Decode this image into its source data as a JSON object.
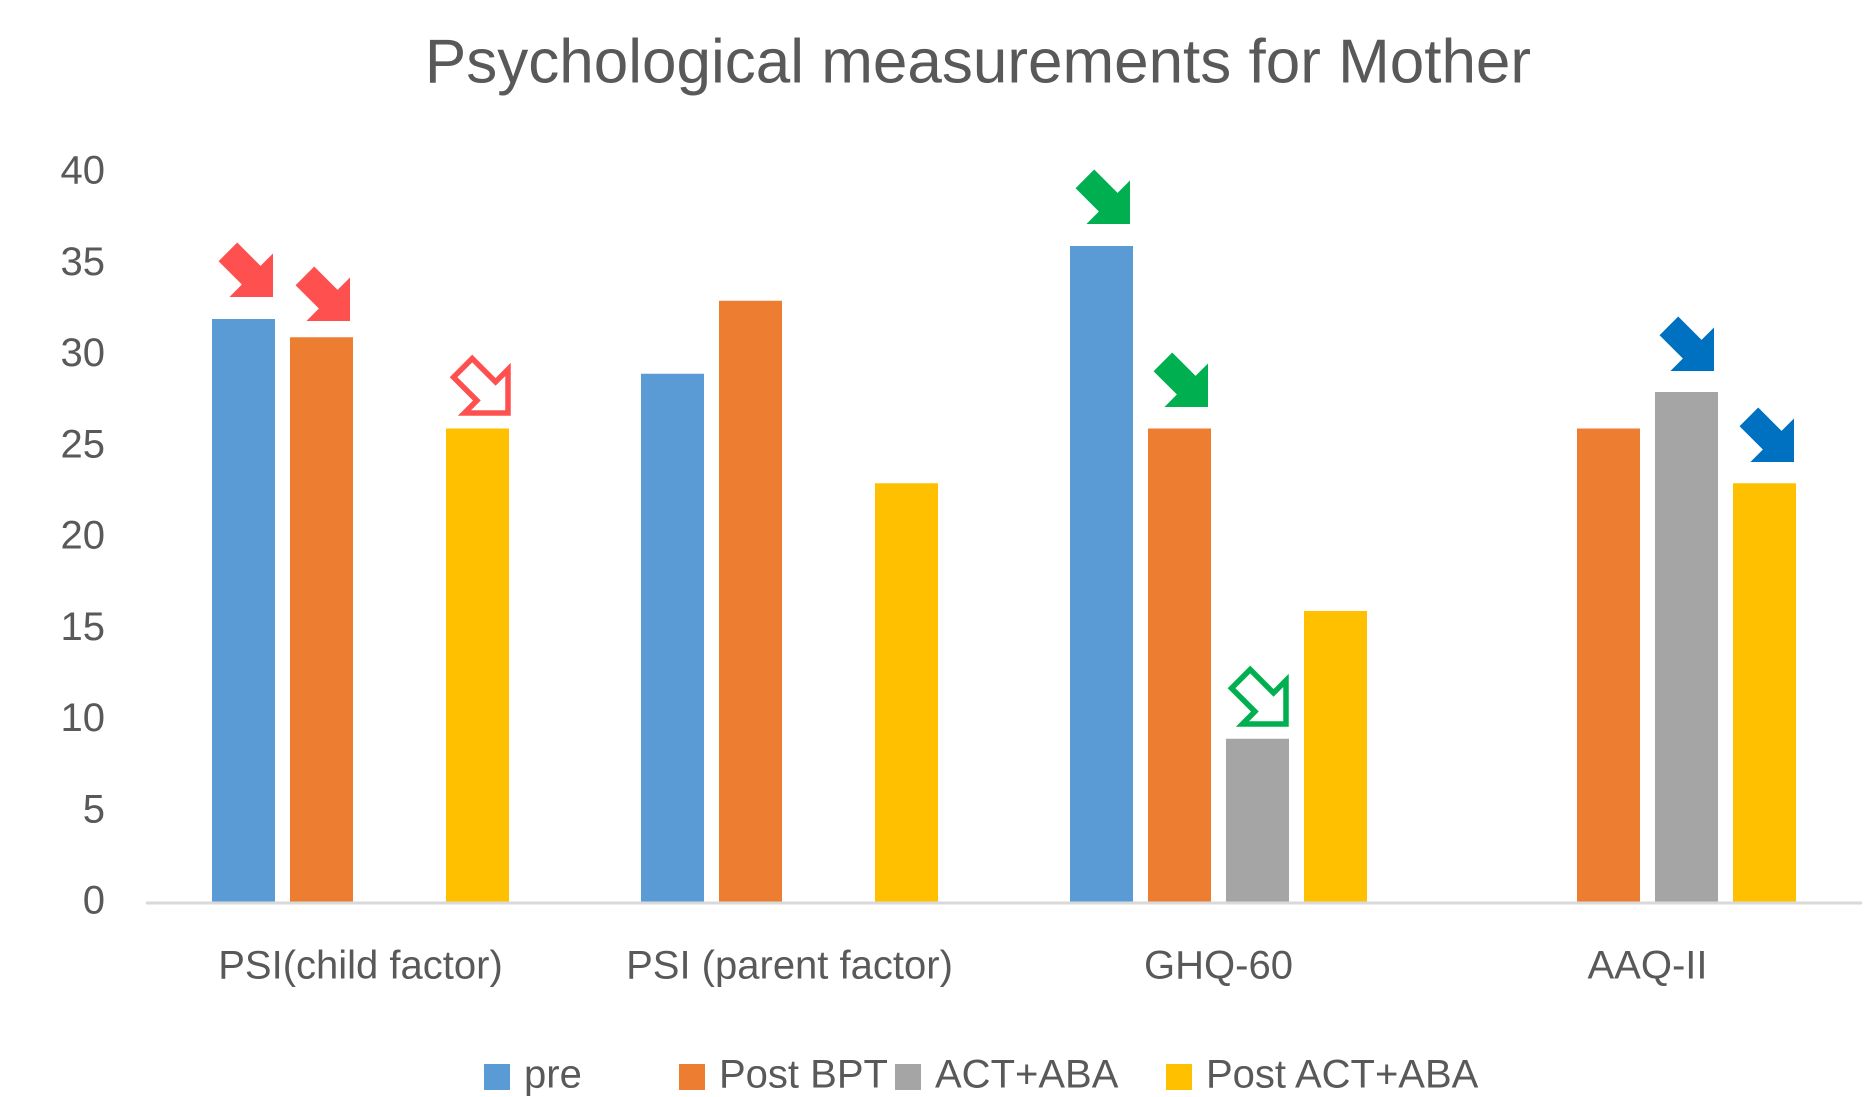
{
  "chart_data": {
    "type": "bar",
    "title": "Psychological measurements for Mother",
    "categories": [
      "PSI(child factor)",
      "PSI (parent factor)",
      "GHQ-60",
      "AAQ-II"
    ],
    "series": [
      {
        "name": "pre",
        "color": "#5b9bd5",
        "values": [
          32,
          29,
          36,
          null
        ]
      },
      {
        "name": "Post BPT",
        "color": "#ed7d31",
        "values": [
          31,
          33,
          26,
          26
        ]
      },
      {
        "name": "ACT+ABA",
        "color": "#a5a5a5",
        "values": [
          null,
          null,
          9,
          28
        ]
      },
      {
        "name": "Post ACT+ABA",
        "color": "#ffc000",
        "values": [
          26,
          23,
          16,
          23
        ]
      }
    ],
    "ylim": [
      0,
      40
    ],
    "yticks": [
      0,
      5,
      10,
      15,
      20,
      25,
      30,
      35,
      40
    ],
    "grid": false,
    "legend": "bottom"
  }
}
